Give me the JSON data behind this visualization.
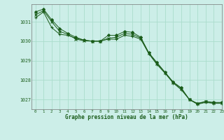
{
  "title": "Graphe pression niveau de la mer (hPa)",
  "bg_color": "#cceee8",
  "grid_color": "#aaddcc",
  "line_color": "#1a5c1a",
  "xlim": [
    -0.5,
    23
  ],
  "ylim": [
    1026.5,
    1031.9
  ],
  "yticks": [
    1027,
    1028,
    1029,
    1030,
    1031
  ],
  "xticks": [
    0,
    1,
    2,
    3,
    4,
    5,
    6,
    7,
    8,
    9,
    10,
    11,
    12,
    13,
    14,
    15,
    16,
    17,
    18,
    19,
    20,
    21,
    22,
    23
  ],
  "series": [
    [
      1031.5,
      1031.65,
      1031.1,
      1030.65,
      1030.4,
      1030.2,
      1030.05,
      1030.0,
      1030.0,
      1030.3,
      1030.3,
      1030.5,
      1030.45,
      1030.2,
      1029.4,
      1028.9,
      1028.4,
      1027.9,
      1027.6,
      1027.0,
      1026.8,
      1026.9,
      1026.85,
      1026.85
    ],
    [
      1031.2,
      1031.5,
      1030.7,
      1030.35,
      1030.3,
      1030.15,
      1030.05,
      1030.0,
      1030.0,
      1030.1,
      1030.1,
      1030.3,
      1030.25,
      1030.1,
      1029.35,
      1028.8,
      1028.35,
      1027.85,
      1027.5,
      1027.0,
      1026.75,
      1026.85,
      1026.8,
      1026.8
    ],
    [
      1031.35,
      1031.57,
      1031.0,
      1030.5,
      1030.35,
      1030.1,
      1030.02,
      1030.0,
      1030.0,
      1030.15,
      1030.2,
      1030.4,
      1030.35,
      1030.15,
      1029.38,
      1028.85,
      1028.38,
      1027.88,
      1027.55,
      1027.0,
      1026.78,
      1026.88,
      1026.82,
      1026.82
    ]
  ],
  "markers": [
    "D",
    "+",
    "x"
  ],
  "markersizes": [
    2.0,
    3.5,
    3.0
  ],
  "linewidth": 0.7
}
